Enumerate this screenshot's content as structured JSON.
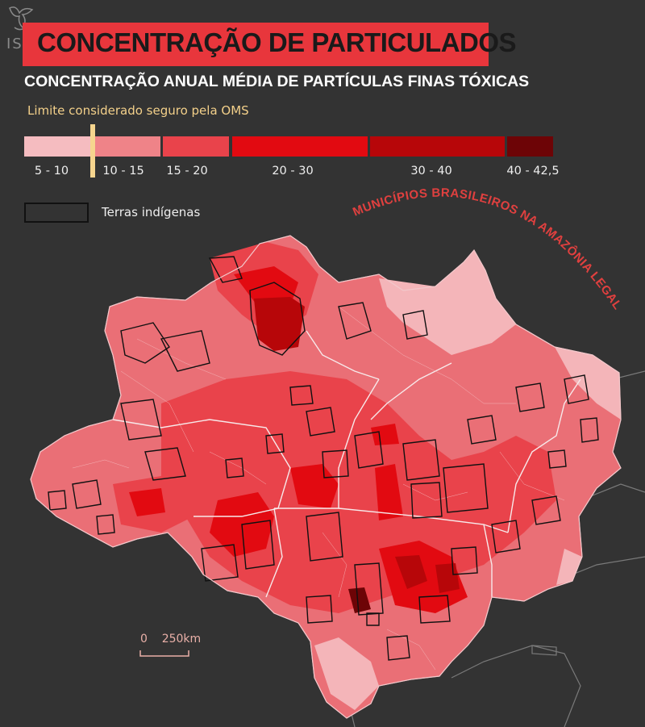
{
  "branding": {
    "logo_text": "ISA",
    "logo_icon": "isa-logo-icon"
  },
  "title": "CONCENTRAÇÃO DE PARTICULADOS",
  "subtitle": "CONCENTRAÇÃO ANUAL MÉDIA DE PARTÍCULAS FINAS TÓXICAS",
  "oms_label": "Limite considerado seguro pela OMS",
  "legend": {
    "classes": [
      {
        "label": "5 - 10",
        "color": "#f5bcc0"
      },
      {
        "label": "10 - 15",
        "color": "#ef8388"
      },
      {
        "label": "15 - 20",
        "color": "#e9434b"
      },
      {
        "label": "20 - 30",
        "color": "#e20a11"
      },
      {
        "label": "30 - 40",
        "color": "#b70609"
      },
      {
        "label": "40 - 42,5",
        "color": "#6d0406"
      }
    ],
    "indigenous_label": "Terras indígenas"
  },
  "map_title": "MUNICÍPIOS BRASILEIROS NA AMAZÔNIA LEGAL",
  "scale": {
    "label": "0    250km"
  },
  "colors": {
    "background": "#333333",
    "title_bg": "#e8363c",
    "oms_line": "#f6d58e",
    "map_title": "#e0403f"
  }
}
